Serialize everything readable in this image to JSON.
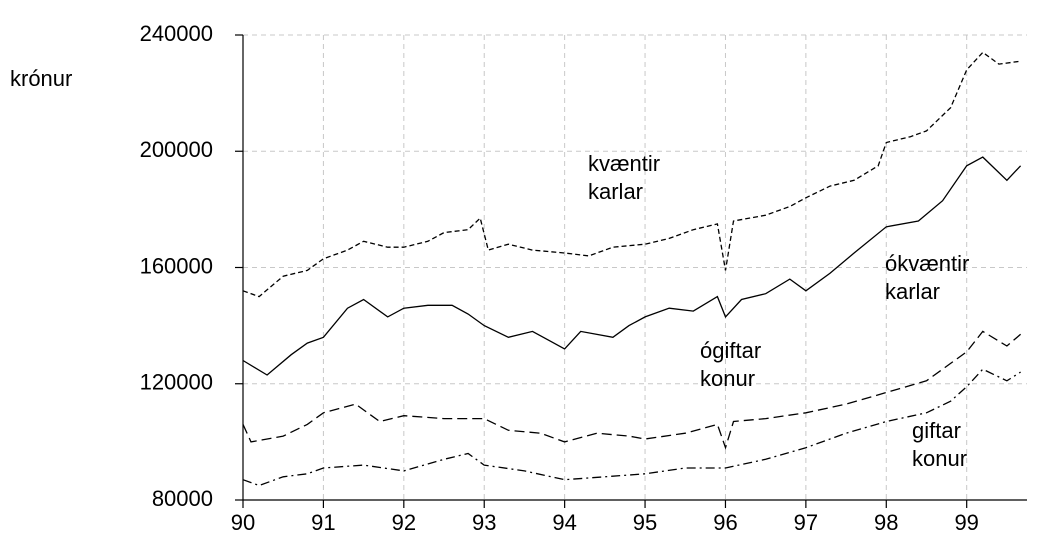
{
  "chart_data": {
    "type": "line",
    "y_label": "krónur",
    "xlim": [
      90,
      99.75
    ],
    "xticks": [
      90,
      91,
      92,
      93,
      94,
      95,
      96,
      97,
      98,
      99
    ],
    "ylim": [
      80000,
      240000
    ],
    "yticks": [
      80000,
      120000,
      160000,
      200000,
      240000
    ],
    "grid": true,
    "series": [
      {
        "name": "kvæntir karlar",
        "color": "#000000",
        "style": "dashed",
        "x": [
          90,
          90.2,
          90.5,
          90.8,
          91,
          91.3,
          91.5,
          91.8,
          92,
          92.3,
          92.5,
          92.8,
          92.95,
          93.05,
          93.3,
          93.6,
          94,
          94.3,
          94.6,
          95,
          95.3,
          95.6,
          95.9,
          96,
          96.1,
          96.5,
          96.8,
          97,
          97.3,
          97.6,
          97.9,
          98,
          98.3,
          98.5,
          98.8,
          99,
          99.2,
          99.4,
          99.67
        ],
        "values": [
          152000,
          150000,
          157000,
          159000,
          163000,
          166000,
          169000,
          167000,
          167000,
          169000,
          172000,
          173000,
          177000,
          166000,
          168000,
          166000,
          165000,
          164000,
          167000,
          168000,
          170000,
          173000,
          175000,
          159000,
          176000,
          178000,
          181000,
          184000,
          188000,
          190000,
          195000,
          203000,
          205000,
          207000,
          215000,
          228000,
          234000,
          230000,
          231000
        ]
      },
      {
        "name": "ókvæntir karlar",
        "color": "#000000",
        "style": "solid",
        "x": [
          90,
          90.3,
          90.6,
          90.8,
          91,
          91.3,
          91.5,
          91.8,
          92,
          92.3,
          92.6,
          92.8,
          93,
          93.3,
          93.6,
          93.8,
          94,
          94.2,
          94.6,
          94.8,
          95,
          95.3,
          95.6,
          95.9,
          96,
          96.2,
          96.5,
          96.8,
          97,
          97.3,
          97.6,
          98,
          98.4,
          98.7,
          99,
          99.2,
          99.5,
          99.67
        ],
        "values": [
          128000,
          123000,
          130000,
          134000,
          136000,
          146000,
          149000,
          143000,
          146000,
          147000,
          147000,
          144000,
          140000,
          136000,
          138000,
          135000,
          132000,
          138000,
          136000,
          140000,
          143000,
          146000,
          145000,
          150000,
          143000,
          149000,
          151000,
          156000,
          152000,
          158000,
          165000,
          174000,
          176000,
          183000,
          195000,
          198000,
          190000,
          195000
        ]
      },
      {
        "name": "ógiftar konur",
        "color": "#000000",
        "style": "longdash",
        "x": [
          90,
          90.1,
          90.5,
          90.8,
          91,
          91.4,
          91.7,
          92,
          92.5,
          93,
          93.3,
          93.7,
          94,
          94.4,
          94.8,
          95,
          95.5,
          95.9,
          96,
          96.1,
          96.5,
          97,
          97.5,
          98,
          98.5,
          98.8,
          99,
          99.2,
          99.5,
          99.67
        ],
        "values": [
          106000,
          100000,
          102000,
          106000,
          110000,
          113000,
          107000,
          109000,
          108000,
          108000,
          104000,
          103000,
          100000,
          103000,
          102000,
          101000,
          103000,
          106000,
          98000,
          107000,
          108000,
          110000,
          113000,
          117000,
          121000,
          127000,
          131000,
          138000,
          133000,
          137000
        ]
      },
      {
        "name": "giftar konur",
        "color": "#000000",
        "style": "dashdot",
        "x": [
          90,
          90.2,
          90.5,
          90.8,
          91,
          91.5,
          92,
          92.5,
          92.8,
          93,
          93.5,
          94,
          94.5,
          95,
          95.5,
          96,
          96.5,
          97,
          97.5,
          98,
          98.5,
          98.8,
          99,
          99.2,
          99.5,
          99.67
        ],
        "values": [
          87000,
          85000,
          88000,
          89000,
          91000,
          92000,
          90000,
          94000,
          96000,
          92000,
          90000,
          87000,
          88000,
          89000,
          91000,
          91000,
          94000,
          98000,
          103000,
          107000,
          110000,
          114000,
          119000,
          125000,
          121000,
          124000
        ]
      }
    ],
    "annotations": [
      {
        "lines": [
          "kvæntir",
          "karlar"
        ]
      },
      {
        "lines": [
          "ókvæntir",
          "karlar"
        ]
      },
      {
        "lines": [
          "ógiftar",
          "konur"
        ]
      },
      {
        "lines": [
          "giftar",
          "konur"
        ]
      }
    ]
  }
}
